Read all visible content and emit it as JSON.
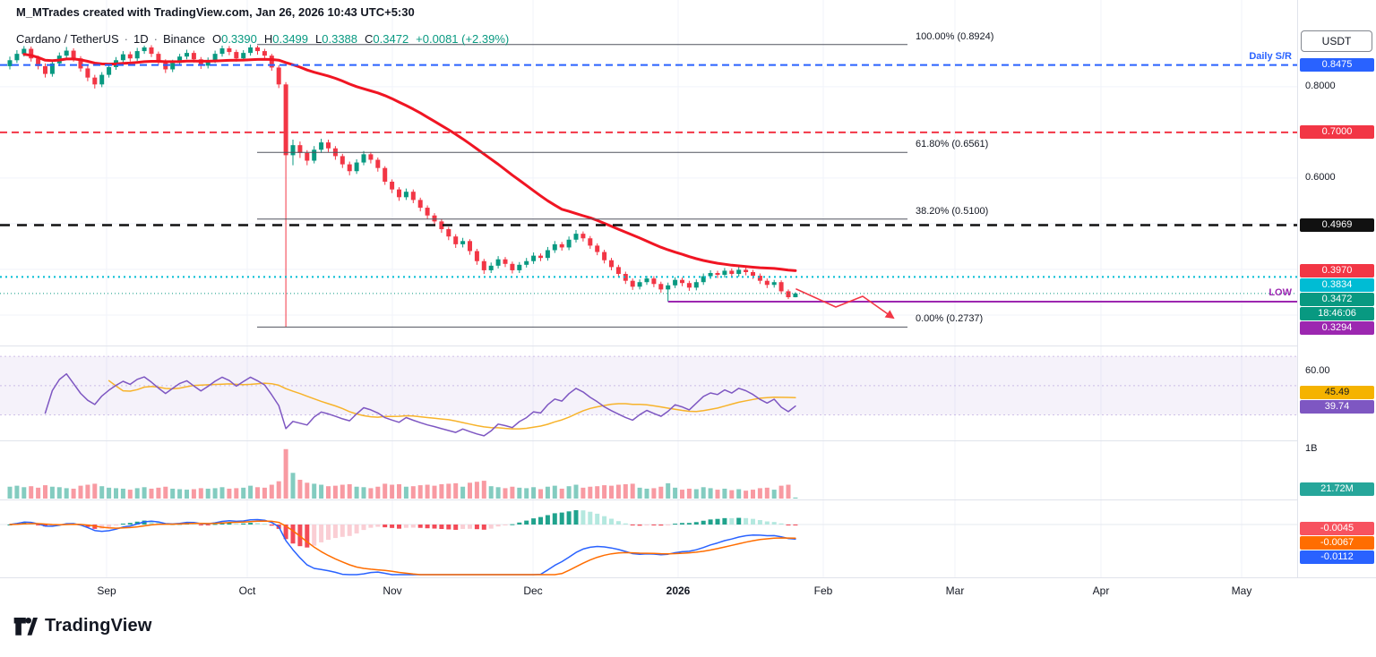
{
  "watermark": "M_MTrades created with TradingView.com, Jan 26, 2026 10:43 UTC+5:30",
  "legend": {
    "symbol": "Cardano / TetherUS",
    "separator": "·",
    "interval": "1D",
    "exchange": "Binance",
    "o_key": "O",
    "o_val": "0.3390",
    "h_key": "H",
    "h_val": "0.3499",
    "l_key": "L",
    "l_val": "0.3388",
    "c_key": "C",
    "c_val": "0.3472",
    "change": "+0.0081 (+2.39%)"
  },
  "toolbar": {
    "currency_label": "USDT"
  },
  "logo": {
    "brand": "TradingView"
  },
  "colors": {
    "up": "#089981",
    "down": "#f23645",
    "ma": "#f01523",
    "rsi": "#7e57c2",
    "rsi_ma": "#f7b32b",
    "macd": "#2962ff",
    "macd_signal": "#ff6d00",
    "hist_up": "#089981",
    "hist_up_light": "#ace5dc",
    "hist_down": "#f23645",
    "hist_down_light": "#f9c9cf",
    "grid": "#f0f3fa",
    "axis_border": "#e0e3eb",
    "text": "#131722"
  },
  "chart_data": {
    "type": "candlestick",
    "price_axis_range": [
      0.245,
      0.935
    ],
    "x_axis": {
      "labels": [
        {
          "text": "Sep"
        },
        {
          "text": "Oct"
        },
        {
          "text": "Nov"
        },
        {
          "text": "Dec"
        },
        {
          "text": "2026",
          "major": true
        },
        {
          "text": "Feb"
        },
        {
          "text": "Mar"
        },
        {
          "text": "Apr"
        },
        {
          "text": "May"
        }
      ]
    },
    "candles": [
      [
        0.845,
        0.866,
        0.838,
        0.858,
        240
      ],
      [
        0.858,
        0.88,
        0.852,
        0.872,
        260
      ],
      [
        0.872,
        0.889,
        0.866,
        0.883,
        230
      ],
      [
        0.883,
        0.888,
        0.855,
        0.862,
        250
      ],
      [
        0.862,
        0.868,
        0.838,
        0.845,
        220
      ],
      [
        0.845,
        0.851,
        0.82,
        0.828,
        270
      ],
      [
        0.828,
        0.858,
        0.822,
        0.851,
        240
      ],
      [
        0.851,
        0.875,
        0.845,
        0.868,
        230
      ],
      [
        0.868,
        0.887,
        0.862,
        0.879,
        210
      ],
      [
        0.879,
        0.884,
        0.855,
        0.862,
        200
      ],
      [
        0.862,
        0.867,
        0.833,
        0.84,
        260
      ],
      [
        0.84,
        0.846,
        0.812,
        0.82,
        280
      ],
      [
        0.82,
        0.826,
        0.796,
        0.805,
        300
      ],
      [
        0.805,
        0.832,
        0.799,
        0.826,
        250
      ],
      [
        0.826,
        0.85,
        0.82,
        0.843,
        220
      ],
      [
        0.843,
        0.865,
        0.837,
        0.858,
        210
      ],
      [
        0.858,
        0.878,
        0.852,
        0.871,
        200
      ],
      [
        0.871,
        0.877,
        0.855,
        0.862,
        180
      ],
      [
        0.862,
        0.885,
        0.856,
        0.878,
        210
      ],
      [
        0.878,
        0.89,
        0.872,
        0.886,
        230
      ],
      [
        0.886,
        0.891,
        0.865,
        0.872,
        200
      ],
      [
        0.872,
        0.877,
        0.848,
        0.855,
        220
      ],
      [
        0.855,
        0.86,
        0.83,
        0.838,
        240
      ],
      [
        0.838,
        0.859,
        0.832,
        0.852,
        200
      ],
      [
        0.852,
        0.872,
        0.846,
        0.866,
        190
      ],
      [
        0.866,
        0.881,
        0.86,
        0.874,
        180
      ],
      [
        0.874,
        0.879,
        0.853,
        0.86,
        190
      ],
      [
        0.86,
        0.865,
        0.839,
        0.846,
        210
      ],
      [
        0.846,
        0.864,
        0.84,
        0.858,
        200
      ],
      [
        0.858,
        0.879,
        0.852,
        0.872,
        210
      ],
      [
        0.872,
        0.89,
        0.866,
        0.884,
        230
      ],
      [
        0.884,
        0.889,
        0.869,
        0.876,
        200
      ],
      [
        0.876,
        0.881,
        0.855,
        0.862,
        210
      ],
      [
        0.862,
        0.88,
        0.856,
        0.874,
        220
      ],
      [
        0.874,
        0.8924,
        0.868,
        0.886,
        260
      ],
      [
        0.886,
        0.89,
        0.87,
        0.878,
        230
      ],
      [
        0.878,
        0.883,
        0.861,
        0.868,
        220
      ],
      [
        0.868,
        0.872,
        0.835,
        0.842,
        280
      ],
      [
        0.842,
        0.847,
        0.797,
        0.805,
        350
      ],
      [
        0.805,
        0.81,
        0.2737,
        0.65,
        1000
      ],
      [
        0.65,
        0.684,
        0.628,
        0.672,
        520
      ],
      [
        0.672,
        0.68,
        0.644,
        0.655,
        380
      ],
      [
        0.655,
        0.661,
        0.628,
        0.638,
        320
      ],
      [
        0.638,
        0.67,
        0.632,
        0.662,
        300
      ],
      [
        0.662,
        0.686,
        0.655,
        0.678,
        280
      ],
      [
        0.678,
        0.684,
        0.657,
        0.665,
        250
      ],
      [
        0.665,
        0.67,
        0.64,
        0.648,
        260
      ],
      [
        0.648,
        0.653,
        0.622,
        0.63,
        280
      ],
      [
        0.63,
        0.636,
        0.606,
        0.615,
        290
      ],
      [
        0.615,
        0.641,
        0.609,
        0.634,
        240
      ],
      [
        0.634,
        0.659,
        0.628,
        0.652,
        230
      ],
      [
        0.652,
        0.657,
        0.632,
        0.64,
        210
      ],
      [
        0.64,
        0.645,
        0.614,
        0.622,
        240
      ],
      [
        0.622,
        0.626,
        0.585,
        0.592,
        300
      ],
      [
        0.592,
        0.597,
        0.567,
        0.575,
        280
      ],
      [
        0.575,
        0.58,
        0.55,
        0.558,
        290
      ],
      [
        0.558,
        0.577,
        0.552,
        0.57,
        240
      ],
      [
        0.57,
        0.575,
        0.545,
        0.552,
        250
      ],
      [
        0.552,
        0.557,
        0.527,
        0.535,
        270
      ],
      [
        0.535,
        0.54,
        0.51,
        0.518,
        280
      ],
      [
        0.518,
        0.523,
        0.497,
        0.505,
        260
      ],
      [
        0.505,
        0.51,
        0.48,
        0.488,
        290
      ],
      [
        0.488,
        0.493,
        0.464,
        0.472,
        300
      ],
      [
        0.472,
        0.477,
        0.447,
        0.455,
        310
      ],
      [
        0.455,
        0.469,
        0.448,
        0.462,
        240
      ],
      [
        0.462,
        0.466,
        0.432,
        0.44,
        320
      ],
      [
        0.44,
        0.445,
        0.41,
        0.418,
        340
      ],
      [
        0.418,
        0.423,
        0.39,
        0.398,
        360
      ],
      [
        0.398,
        0.415,
        0.392,
        0.408,
        250
      ],
      [
        0.408,
        0.429,
        0.402,
        0.422,
        230
      ],
      [
        0.422,
        0.427,
        0.405,
        0.412,
        210
      ],
      [
        0.412,
        0.417,
        0.391,
        0.398,
        240
      ],
      [
        0.398,
        0.416,
        0.392,
        0.41,
        220
      ],
      [
        0.41,
        0.425,
        0.404,
        0.418,
        210
      ],
      [
        0.418,
        0.437,
        0.412,
        0.43,
        230
      ],
      [
        0.43,
        0.435,
        0.418,
        0.425,
        190
      ],
      [
        0.425,
        0.449,
        0.419,
        0.442,
        240
      ],
      [
        0.442,
        0.462,
        0.436,
        0.455,
        260
      ],
      [
        0.455,
        0.46,
        0.441,
        0.448,
        200
      ],
      [
        0.448,
        0.472,
        0.442,
        0.465,
        250
      ],
      [
        0.465,
        0.486,
        0.459,
        0.478,
        280
      ],
      [
        0.478,
        0.483,
        0.461,
        0.468,
        220
      ],
      [
        0.468,
        0.473,
        0.445,
        0.452,
        240
      ],
      [
        0.452,
        0.457,
        0.431,
        0.438,
        250
      ],
      [
        0.438,
        0.443,
        0.413,
        0.42,
        270
      ],
      [
        0.42,
        0.425,
        0.398,
        0.405,
        260
      ],
      [
        0.405,
        0.41,
        0.383,
        0.39,
        280
      ],
      [
        0.39,
        0.395,
        0.368,
        0.375,
        290
      ],
      [
        0.375,
        0.38,
        0.355,
        0.362,
        300
      ],
      [
        0.362,
        0.378,
        0.356,
        0.372,
        220
      ],
      [
        0.372,
        0.386,
        0.366,
        0.38,
        200
      ],
      [
        0.38,
        0.385,
        0.361,
        0.368,
        210
      ],
      [
        0.368,
        0.373,
        0.349,
        0.356,
        240
      ],
      [
        0.356,
        0.371,
        0.3294,
        0.365,
        310
      ],
      [
        0.365,
        0.383,
        0.359,
        0.377,
        220
      ],
      [
        0.377,
        0.382,
        0.363,
        0.37,
        180
      ],
      [
        0.37,
        0.375,
        0.353,
        0.36,
        200
      ],
      [
        0.36,
        0.378,
        0.354,
        0.372,
        190
      ],
      [
        0.372,
        0.391,
        0.366,
        0.385,
        230
      ],
      [
        0.385,
        0.398,
        0.379,
        0.392,
        210
      ],
      [
        0.392,
        0.397,
        0.381,
        0.388,
        180
      ],
      [
        0.388,
        0.403,
        0.382,
        0.397,
        200
      ],
      [
        0.397,
        0.402,
        0.384,
        0.39,
        170
      ],
      [
        0.39,
        0.405,
        0.384,
        0.399,
        190
      ],
      [
        0.399,
        0.404,
        0.387,
        0.394,
        160
      ],
      [
        0.394,
        0.399,
        0.379,
        0.386,
        180
      ],
      [
        0.386,
        0.391,
        0.368,
        0.375,
        210
      ],
      [
        0.375,
        0.38,
        0.359,
        0.366,
        220
      ],
      [
        0.366,
        0.377,
        0.36,
        0.372,
        180
      ],
      [
        0.372,
        0.376,
        0.346,
        0.352,
        260
      ],
      [
        0.352,
        0.356,
        0.335,
        0.339,
        280
      ],
      [
        0.339,
        0.3499,
        0.3388,
        0.3472,
        21.72
      ]
    ],
    "ma": {
      "period": 40
    },
    "levels": [
      {
        "kind": "fib",
        "label": "100.00% (0.8924)",
        "price": 0.8924
      },
      {
        "kind": "fib",
        "label": "61.80% (0.6561)",
        "price": 0.6561
      },
      {
        "kind": "fib",
        "label": "38.20% (0.5100)",
        "price": 0.51
      },
      {
        "kind": "fib",
        "label": "0.00% (0.2737)",
        "price": 0.2737
      },
      {
        "kind": "hline",
        "name": "daily-sr-line",
        "side_label": "Daily S/R",
        "price": 0.8475,
        "color": "#2962ff",
        "style": "dashed"
      },
      {
        "kind": "hline",
        "name": "resistance-line",
        "price": 0.7,
        "color": "#f23645",
        "style": "dashed"
      },
      {
        "kind": "hline",
        "name": "support-line",
        "price": 0.4969,
        "color": "#111111",
        "style": "dashed-bold"
      },
      {
        "kind": "hline",
        "name": "level-line",
        "price": 0.3834,
        "color": "#00bcd4",
        "style": "dotted"
      },
      {
        "kind": "hline",
        "name": "current-price-line",
        "price": 0.3472,
        "color": "#089981",
        "style": "fine-dotted"
      },
      {
        "kind": "hline",
        "name": "low-line",
        "side_label": "LOW",
        "price": 0.3294,
        "color": "#9c27b0",
        "style": "solid",
        "ray_from_index": 93
      }
    ],
    "price_axis": {
      "items": [
        {
          "text": "0.8475",
          "bg": "#2962ff",
          "fg": "#ffffff",
          "price": 0.8475
        },
        {
          "text": "0.8000",
          "plain": true,
          "price": 0.8
        },
        {
          "text": "0.7000",
          "bg": "#f23645",
          "fg": "#ffffff",
          "price": 0.7
        },
        {
          "text": "0.6000",
          "plain": true,
          "price": 0.6
        },
        {
          "text": "0.4969",
          "bg": "#111111",
          "fg": "#ffffff",
          "price": 0.4969
        },
        {
          "text": "0.3970",
          "bg": "#f23645",
          "fg": "#ffffff",
          "price": 0.397
        },
        {
          "text": "0.3834",
          "bg": "#00bcd4",
          "fg": "#ffffff",
          "price": 0.3834
        },
        {
          "text": "0.3472",
          "bg": "#089981",
          "fg": "#ffffff",
          "price": 0.3472
        },
        {
          "text": "18:46:06",
          "bg": "#089981",
          "fg": "#ffffff",
          "stack": true
        },
        {
          "text": "0.3294",
          "bg": "#9c27b0",
          "fg": "#ffffff",
          "price": 0.3294
        }
      ]
    },
    "indicators": {
      "rsi": {
        "period": 14,
        "ma_period": 14,
        "band": [
          30,
          70
        ],
        "axis": [
          {
            "text": "60.00",
            "plain": true,
            "value": 60
          },
          {
            "text": "45.49",
            "bg": "#f5b300",
            "fg": "#131722",
            "value": 45.49
          },
          {
            "text": "39.74",
            "bg": "#7e57c2",
            "fg": "#ffffff",
            "value": 39.74
          }
        ]
      },
      "volume": {
        "axis": [
          {
            "text": "1B",
            "plain": true,
            "value": 1000
          },
          {
            "text": "21.72M",
            "bg": "#26a69a",
            "fg": "#ffffff",
            "value": 21.72
          }
        ]
      },
      "macd": {
        "fast": 12,
        "slow": 26,
        "signal": 9,
        "axis": [
          {
            "text": "-0.0045",
            "bg": "#f7525f",
            "fg": "#ffffff",
            "value": -0.0045
          },
          {
            "text": "-0.0067",
            "bg": "#ff6d00",
            "fg": "#ffffff",
            "value": -0.0067
          },
          {
            "text": "-0.0112",
            "bg": "#2962ff",
            "fg": "#ffffff",
            "value": -0.0112
          }
        ]
      }
    },
    "annotations": [
      {
        "name": "projection-arrow",
        "color": "#f23645",
        "points": [
          [
            889,
            323
          ],
          [
            933,
            343
          ],
          [
            963,
            331
          ],
          [
            997,
            355
          ]
        ]
      }
    ]
  }
}
